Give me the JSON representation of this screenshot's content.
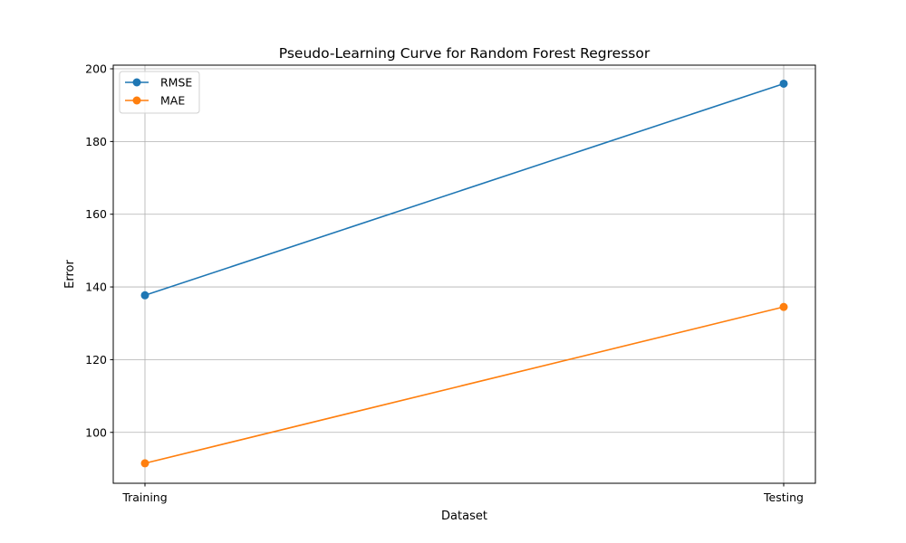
{
  "chart_data": {
    "type": "line",
    "title": "Pseudo-Learning Curve for Random Forest Regressor",
    "xlabel": "Dataset",
    "ylabel": "Error",
    "categories": [
      "Training",
      "Testing"
    ],
    "ylim": [
      86,
      201
    ],
    "yticks": [
      100,
      120,
      140,
      160,
      180,
      200
    ],
    "grid": true,
    "legend_position": "upper-left",
    "series": [
      {
        "name": "RMSE",
        "color": "#1f77b4",
        "values": [
          137.7,
          195.9
        ]
      },
      {
        "name": "MAE",
        "color": "#ff7f0e",
        "values": [
          91.5,
          134.5
        ]
      }
    ]
  }
}
